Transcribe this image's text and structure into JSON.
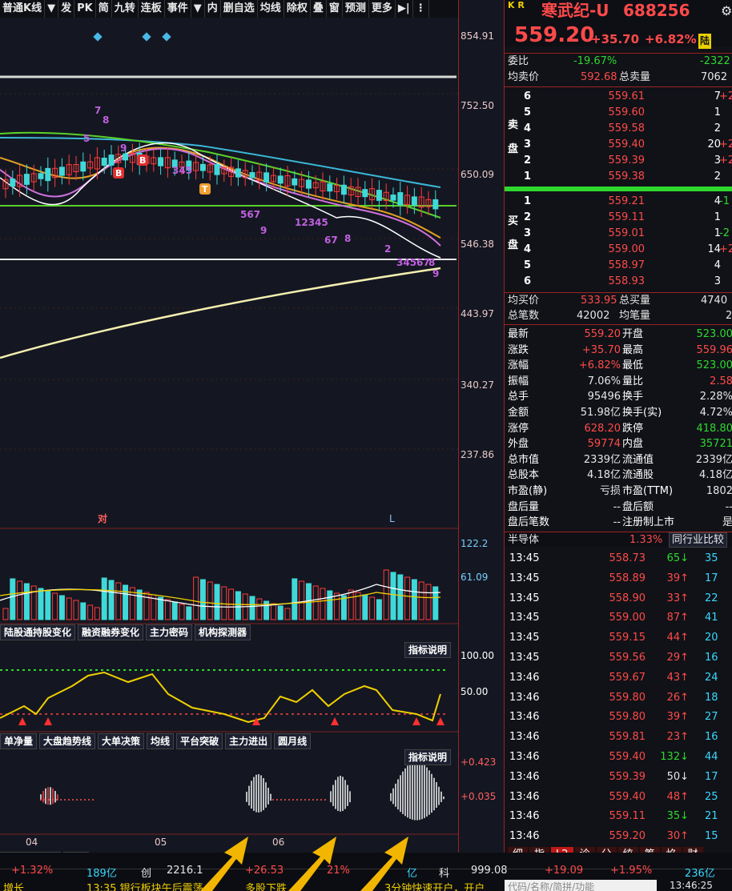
{
  "toolbar": [
    "普通K线",
    "▼",
    "发",
    "PK",
    "简",
    "九转",
    "连板",
    "事件",
    "▼",
    "内",
    "删自选",
    "均线",
    "除权",
    "叠",
    "窗",
    "预测",
    "更多",
    "▶|",
    "⋮"
  ],
  "price_axis": [
    "854.91",
    "752.50",
    "650.09",
    "546.38",
    "443.97",
    "340.27",
    "237.86"
  ],
  "volume_axis": [
    "122.2",
    "61.09"
  ],
  "ind1_axis": [
    "100.00",
    "50.00"
  ],
  "ind2_axis": [
    "+0.423",
    "+0.035"
  ],
  "chart_labels": {
    "dui": "对",
    "L": "L",
    "t1": "04",
    "t2": "05",
    "t3": "06"
  },
  "tabs_mid": [
    "陆股通持股变化",
    "融资融券变化",
    "主力密码",
    "机构探测器"
  ],
  "tabs_low": [
    "单净量",
    "大盘趋势线",
    "大单决策",
    "均线",
    "平台突破",
    "主力进出",
    "圆月线"
  ],
  "indicator_btn": "指标说明",
  "bottom_tabs": [
    "主力建仓A6",
    "CCI"
  ],
  "header": {
    "kr": "K R",
    "name": "寒武纪-U",
    "code": "688256",
    "price": "559.20",
    "chg": "+35.70",
    "pct": "+6.82%",
    "tag": "陆"
  },
  "weibi": {
    "label": "委比",
    "value": "-19.67%",
    "diff": "-2322"
  },
  "avg_sell": {
    "label": "均卖价",
    "value": "592.68",
    "label2": "总卖量",
    "value2": "7062"
  },
  "sell_label": "卖盘",
  "buy_label": "买盘",
  "sell": [
    {
      "n": "6",
      "p": "559.61",
      "v": "7",
      "x": "+2"
    },
    {
      "n": "5",
      "p": "559.60",
      "v": "1",
      "x": ""
    },
    {
      "n": "4",
      "p": "559.58",
      "v": "2",
      "x": ""
    },
    {
      "n": "3",
      "p": "559.40",
      "v": "20",
      "x": "+2"
    },
    {
      "n": "2",
      "p": "559.39",
      "v": "3",
      "x": "+2"
    },
    {
      "n": "1",
      "p": "559.38",
      "v": "2",
      "x": ""
    }
  ],
  "buy": [
    {
      "n": "1",
      "p": "559.21",
      "v": "4",
      "x": "-1"
    },
    {
      "n": "2",
      "p": "559.11",
      "v": "1",
      "x": ""
    },
    {
      "n": "3",
      "p": "559.01",
      "v": "1",
      "x": "-2"
    },
    {
      "n": "4",
      "p": "559.00",
      "v": "14",
      "x": "+2"
    },
    {
      "n": "5",
      "p": "558.97",
      "v": "4",
      "x": ""
    },
    {
      "n": "6",
      "p": "558.93",
      "v": "3",
      "x": ""
    }
  ],
  "avg_buy": {
    "label": "均买价",
    "value": "533.95",
    "label2": "总买量",
    "value2": "4740"
  },
  "total_trades": {
    "label": "总笔数",
    "value": "42002",
    "label2": "均笔量",
    "value2": "2"
  },
  "stats": [
    {
      "k": "最新",
      "v": "559.20",
      "c": "r",
      "k2": "开盘",
      "v2": "523.00",
      "c2": "g"
    },
    {
      "k": "涨跌",
      "v": "+35.70",
      "c": "r",
      "k2": "最高",
      "v2": "559.96",
      "c2": "r"
    },
    {
      "k": "涨幅",
      "v": "+6.82%",
      "c": "r",
      "k2": "最低",
      "v2": "523.00",
      "c2": "g"
    },
    {
      "k": "振幅",
      "v": "7.06%",
      "c": "w",
      "k2": "量比",
      "v2": "2.58",
      "c2": "r"
    },
    {
      "k": "总手",
      "v": "95496",
      "c": "w",
      "k2": "换手",
      "v2": "2.28%",
      "c2": "w"
    },
    {
      "k": "金额",
      "v": "51.98亿",
      "c": "w",
      "k2": "换手(实)",
      "v2": "4.72%",
      "c2": "w"
    },
    {
      "k": "涨停",
      "v": "628.20",
      "c": "r",
      "k2": "跌停",
      "v2": "418.80",
      "c2": "g"
    },
    {
      "k": "外盘",
      "v": "59774",
      "c": "r",
      "k2": "内盘",
      "v2": "35721",
      "c2": "g"
    },
    {
      "k": "总市值",
      "v": "2339亿",
      "c": "w",
      "k2": "流通值",
      "v2": "2339亿",
      "c2": "w"
    },
    {
      "k": "总股本",
      "v": "4.18亿",
      "c": "w",
      "k2": "流通股",
      "v2": "4.18亿",
      "c2": "w"
    },
    {
      "k": "市盈(静)",
      "v": "亏损",
      "c": "w",
      "k2": "市盈(TTM)",
      "v2": "1802",
      "c2": "w"
    },
    {
      "k": "盘后量",
      "v": "--",
      "c": "w",
      "k2": "盘后额",
      "v2": "--",
      "c2": "w"
    },
    {
      "k": "盘后笔数",
      "v": "--",
      "c": "w",
      "k2": "注册制上市",
      "v2": "是",
      "c2": "w"
    }
  ],
  "sector": {
    "name": "半导体",
    "pct": "1.33%",
    "btn": "同行业比较"
  },
  "ticks": [
    {
      "t": "13:45",
      "p": "558.73",
      "c": "r",
      "v": "65",
      "a": "↓",
      "vc": "g",
      "v2": "35"
    },
    {
      "t": "13:45",
      "p": "558.89",
      "c": "r",
      "v": "39",
      "a": "↑",
      "vc": "r",
      "v2": "17"
    },
    {
      "t": "13:45",
      "p": "558.90",
      "c": "r",
      "v": "33",
      "a": "↑",
      "vc": "r",
      "v2": "22"
    },
    {
      "t": "13:45",
      "p": "559.00",
      "c": "r",
      "v": "87",
      "a": "↑",
      "vc": "r",
      "v2": "41"
    },
    {
      "t": "13:45",
      "p": "559.15",
      "c": "r",
      "v": "44",
      "a": "↑",
      "vc": "r",
      "v2": "20"
    },
    {
      "t": "13:45",
      "p": "559.56",
      "c": "r",
      "v": "29",
      "a": "↑",
      "vc": "r",
      "v2": "16"
    },
    {
      "t": "13:46",
      "p": "559.67",
      "c": "r",
      "v": "43",
      "a": "↑",
      "vc": "r",
      "v2": "24"
    },
    {
      "t": "13:46",
      "p": "559.80",
      "c": "r",
      "v": "26",
      "a": "↑",
      "vc": "r",
      "v2": "18"
    },
    {
      "t": "13:46",
      "p": "559.80",
      "c": "r",
      "v": "39",
      "a": "↑",
      "vc": "r",
      "v2": "27"
    },
    {
      "t": "13:46",
      "p": "559.81",
      "c": "r",
      "v": "23",
      "a": "↑",
      "vc": "r",
      "v2": "16"
    },
    {
      "t": "13:46",
      "p": "559.40",
      "c": "r",
      "v": "132",
      "a": "↓",
      "vc": "g",
      "v2": "44"
    },
    {
      "t": "13:46",
      "p": "559.39",
      "c": "r",
      "v": "50",
      "a": "↓",
      "vc": "w",
      "v2": "17"
    },
    {
      "t": "13:46",
      "p": "559.40",
      "c": "r",
      "v": "48",
      "a": "↑",
      "vc": "r",
      "v2": "25"
    },
    {
      "t": "13:46",
      "p": "559.11",
      "c": "r",
      "v": "35",
      "a": "↓",
      "vc": "g",
      "v2": "21"
    },
    {
      "t": "13:46",
      "p": "559.20",
      "c": "r",
      "v": "30",
      "a": "↑",
      "vc": "r",
      "v2": "15"
    }
  ],
  "rp_tabs": [
    "细",
    "指",
    "L2",
    "诊",
    "分",
    "统",
    "筹",
    "焰",
    "财"
  ],
  "status": {
    "a": "+1.32%",
    "b": "189亿",
    "c": "创",
    "d": "2216.1",
    "e": "+26.53",
    "f": "21%",
    "g": "亿",
    "h": "科",
    "i": "999.08",
    "j": "+19.09",
    "k": "+1.95%",
    "l": "236亿",
    "news1": "增长",
    "news2": "13:35 银行板块午后震荡",
    "news3": "多股下跌",
    "news4": "3分钟快速开户，开户",
    "search": "代码/名称/简拼/功能",
    "time": "13:46:25"
  }
}
